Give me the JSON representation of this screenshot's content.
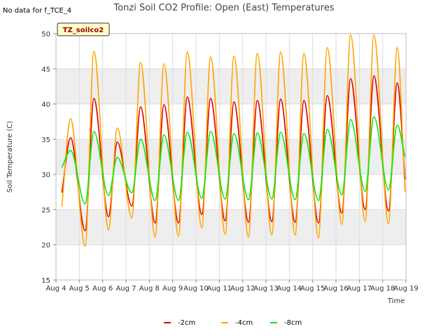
{
  "header": {
    "title": "Tonzi Soil CO2 Profile: Open (East) Temperatures",
    "no_data_note": "No data for f_TCE_4",
    "tag": "TZ_soilco2"
  },
  "colors": {
    "band": "#eeeeee",
    "grid": "#dddddd",
    "axis": "#bbbbbb",
    "tag_fill": "#ffffcc"
  },
  "chart_data": {
    "type": "line",
    "title": "Tonzi Soil CO2 Profile: Open (East) Temperatures",
    "xlabel": "Time",
    "ylabel": "Soil Temperature (C)",
    "x_ticks": [
      "Aug 4",
      "Aug 5",
      "Aug 6",
      "Aug 7",
      "Aug 8",
      "Aug 9",
      "Aug 10",
      "Aug 11",
      "Aug 12",
      "Aug 13",
      "Aug 14",
      "Aug 15",
      "Aug 16",
      "Aug 17",
      "Aug 18",
      "Aug 19"
    ],
    "y_ticks": [
      "15",
      "20",
      "25",
      "30",
      "35",
      "40",
      "45",
      "50"
    ],
    "xlim": [
      "Aug 4",
      "Aug 19"
    ],
    "ylim": [
      15,
      50
    ],
    "grid": true,
    "legend_position": "bottom-center",
    "x": [
      "Aug 4 06:00",
      "Aug 4 15:00",
      "Aug 5 06:00",
      "Aug 5 15:00",
      "Aug 6 06:00",
      "Aug 6 15:00",
      "Aug 7 06:00",
      "Aug 7 15:00",
      "Aug 8 06:00",
      "Aug 8 15:00",
      "Aug 9 06:00",
      "Aug 9 15:00",
      "Aug 10 06:00",
      "Aug 10 15:00",
      "Aug 11 06:00",
      "Aug 11 15:00",
      "Aug 12 06:00",
      "Aug 12 15:00",
      "Aug 13 06:00",
      "Aug 13 15:00",
      "Aug 14 06:00",
      "Aug 14 15:00",
      "Aug 15 06:00",
      "Aug 15 15:00",
      "Aug 16 06:00",
      "Aug 16 15:00",
      "Aug 17 06:00",
      "Aug 17 15:00",
      "Aug 18 06:00",
      "Aug 18 15:00",
      "Aug 18 23:00"
    ],
    "series": [
      {
        "name": "-2cm",
        "color": "#dd0000",
        "values": [
          27.4,
          35.2,
          22.0,
          40.8,
          24.0,
          34.6,
          25.5,
          39.6,
          23.1,
          39.9,
          23.1,
          41.0,
          24.3,
          40.8,
          23.4,
          40.3,
          23.2,
          40.5,
          23.3,
          40.7,
          23.2,
          40.5,
          23.1,
          41.2,
          24.5,
          43.6,
          25.0,
          44.0,
          24.8,
          43.0,
          29.3
        ]
      },
      {
        "name": "-4cm",
        "color": "#ffa500",
        "values": [
          25.4,
          37.9,
          19.8,
          47.5,
          22.1,
          36.6,
          23.8,
          45.9,
          21.1,
          45.7,
          21.2,
          47.4,
          22.4,
          46.7,
          21.5,
          46.8,
          21.1,
          47.2,
          21.4,
          47.4,
          21.4,
          47.2,
          21.0,
          48.0,
          22.9,
          49.8,
          23.3,
          49.8,
          23.0,
          48.0,
          27.5
        ]
      },
      {
        "name": "-8cm",
        "color": "#00ee00",
        "values": [
          31.0,
          33.4,
          25.8,
          36.1,
          27.0,
          32.4,
          27.4,
          35.0,
          26.3,
          35.6,
          26.3,
          36.0,
          26.6,
          36.1,
          26.5,
          35.8,
          26.4,
          35.9,
          26.5,
          36.0,
          26.4,
          35.8,
          26.3,
          36.4,
          27.1,
          37.8,
          27.6,
          38.2,
          27.8,
          37.0,
          32.5
        ]
      }
    ]
  }
}
